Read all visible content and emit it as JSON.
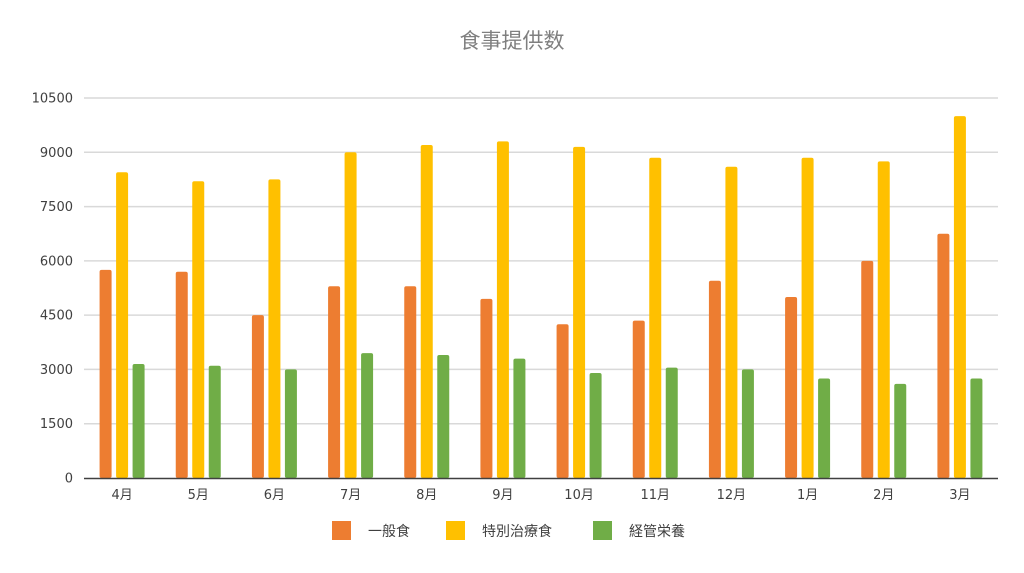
{
  "chart_data": {
    "type": "bar",
    "title": "食事提供数",
    "categories": [
      "4月",
      "5月",
      "6月",
      "7月",
      "8月",
      "9月",
      "10月",
      "11月",
      "12月",
      "1月",
      "2月",
      "3月"
    ],
    "series": [
      {
        "name": "一般食",
        "color": "#ED7D31",
        "values": [
          5750,
          5700,
          4500,
          5300,
          5300,
          4950,
          4250,
          4350,
          5450,
          5000,
          6000,
          6750
        ]
      },
      {
        "name": "特別治療食",
        "color": "#FFC000",
        "values": [
          8450,
          8200,
          8250,
          9000,
          9200,
          9300,
          9150,
          8850,
          8600,
          8850,
          8750,
          10000
        ]
      },
      {
        "name": "経管栄養",
        "color": "#70AD47",
        "values": [
          3150,
          3100,
          3000,
          3450,
          3400,
          3300,
          2900,
          3050,
          3000,
          2750,
          2600,
          2750
        ]
      }
    ],
    "ylim": [
      0,
      10500
    ],
    "yticks": [
      0,
      1500,
      3000,
      4500,
      6000,
      7500,
      9000,
      10500
    ],
    "grid": true,
    "legend_position": "bottom"
  }
}
